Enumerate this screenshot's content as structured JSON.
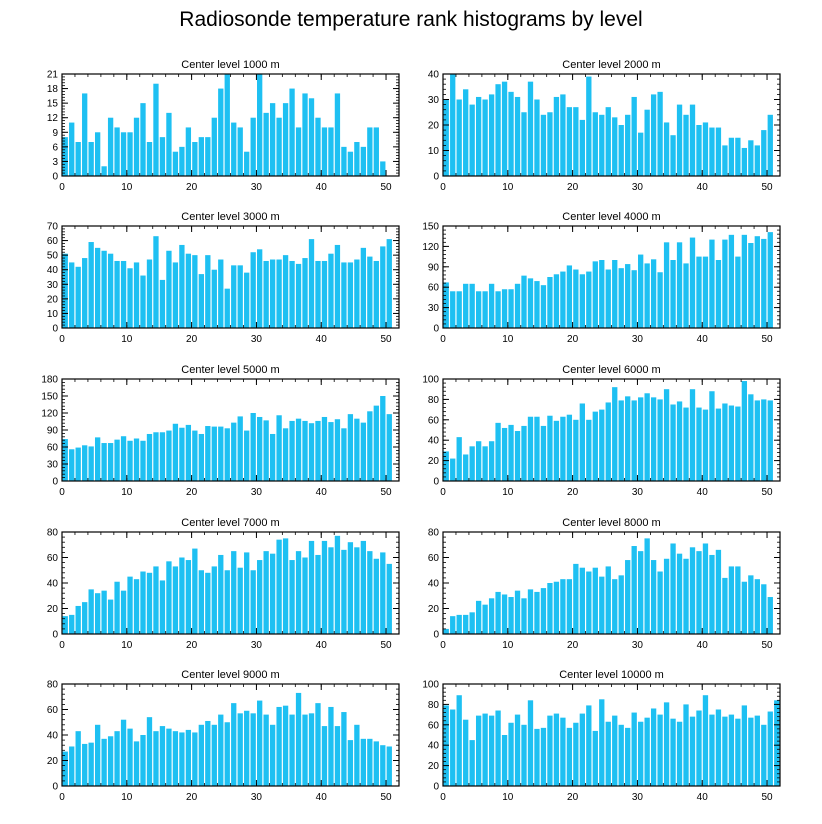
{
  "figure": {
    "title": "Radiosonde temperature rank histograms by level"
  },
  "colors": {
    "bar": "#1ec0f2",
    "axis": "#000000",
    "background": "#ffffff"
  },
  "chart_data": [
    {
      "type": "bar",
      "title": "Center level 1000 m",
      "xlabel": "",
      "ylabel": "",
      "xlim": [
        0,
        52
      ],
      "ylim": [
        0,
        21
      ],
      "xticks": [
        0,
        10,
        20,
        30,
        40,
        50
      ],
      "yticks": [
        0,
        3,
        6,
        9,
        12,
        15,
        18,
        21
      ],
      "values": [
        8,
        11,
        7,
        17,
        7,
        9,
        2,
        12,
        10,
        9,
        9,
        12,
        15,
        7,
        19,
        8,
        13,
        5,
        6,
        10,
        7,
        8,
        8,
        12,
        18,
        21,
        11,
        10,
        5,
        12,
        21,
        13,
        15,
        12,
        15,
        18,
        10,
        17,
        16,
        12,
        10,
        10,
        17,
        6,
        5,
        7,
        6,
        10,
        10,
        3
      ]
    },
    {
      "type": "bar",
      "title": "Center level 2000 m",
      "xlabel": "",
      "ylabel": "",
      "xlim": [
        0,
        52
      ],
      "ylim": [
        0,
        40
      ],
      "xticks": [
        0,
        10,
        20,
        30,
        40,
        50
      ],
      "yticks": [
        0,
        10,
        20,
        30,
        40
      ],
      "values": [
        30,
        40,
        30,
        34,
        28,
        31,
        30,
        32,
        36,
        37,
        33,
        31,
        25,
        37,
        30,
        24,
        25,
        31,
        32,
        27,
        27,
        22,
        39,
        25,
        24,
        27,
        23,
        20,
        24,
        31,
        17,
        26,
        32,
        33,
        21,
        16,
        28,
        24,
        28,
        20,
        21,
        19,
        19,
        12,
        15,
        15,
        11,
        14,
        12,
        18,
        24
      ]
    },
    {
      "type": "bar",
      "title": "Center level 3000 m",
      "xlabel": "",
      "ylabel": "",
      "xlim": [
        0,
        52
      ],
      "ylim": [
        0,
        70
      ],
      "xticks": [
        0,
        10,
        20,
        30,
        40,
        50
      ],
      "yticks": [
        0,
        10,
        20,
        30,
        40,
        50,
        60,
        70
      ],
      "values": [
        51,
        45,
        42,
        48,
        59,
        55,
        53,
        51,
        46,
        46,
        41,
        45,
        36,
        47,
        63,
        33,
        53,
        45,
        57,
        51,
        50,
        37,
        50,
        40,
        47,
        27,
        43,
        43,
        38,
        52,
        54,
        46,
        47,
        47,
        50,
        46,
        44,
        48,
        61,
        46,
        46,
        51,
        57,
        45,
        45,
        47,
        55,
        49,
        46,
        56,
        61
      ]
    },
    {
      "type": "bar",
      "title": "Center level 4000 m",
      "xlabel": "",
      "ylabel": "",
      "xlim": [
        0,
        52
      ],
      "ylim": [
        0,
        150
      ],
      "xticks": [
        0,
        10,
        20,
        30,
        40,
        50
      ],
      "yticks": [
        0,
        30,
        60,
        90,
        120,
        150
      ],
      "values": [
        67,
        54,
        54,
        65,
        65,
        54,
        54,
        65,
        54,
        57,
        57,
        65,
        77,
        73,
        69,
        63,
        75,
        79,
        83,
        92,
        86,
        79,
        83,
        98,
        100,
        86,
        100,
        88,
        94,
        85,
        108,
        95,
        101,
        82,
        126,
        100,
        126,
        95,
        133,
        105,
        105,
        130,
        100,
        130,
        137,
        105,
        137,
        125,
        135,
        131,
        141
      ]
    },
    {
      "type": "bar",
      "title": "Center level 5000 m",
      "xlabel": "",
      "ylabel": "",
      "xlim": [
        0,
        52
      ],
      "ylim": [
        0,
        180
      ],
      "xticks": [
        0,
        10,
        20,
        30,
        40,
        50
      ],
      "yticks": [
        0,
        30,
        60,
        90,
        120,
        150,
        180
      ],
      "values": [
        74,
        56,
        59,
        63,
        61,
        77,
        67,
        67,
        73,
        79,
        71,
        75,
        71,
        83,
        86,
        86,
        89,
        101,
        94,
        99,
        89,
        83,
        97,
        96,
        96,
        93,
        103,
        114,
        89,
        120,
        113,
        107,
        83,
        116,
        93,
        106,
        110,
        106,
        102,
        106,
        113,
        104,
        109,
        93,
        118,
        110,
        103,
        123,
        133,
        150,
        118
      ]
    },
    {
      "type": "bar",
      "title": "Center level 6000 m",
      "xlabel": "",
      "ylabel": "",
      "xlim": [
        0,
        52
      ],
      "ylim": [
        0,
        100
      ],
      "xticks": [
        0,
        10,
        20,
        30,
        40,
        50
      ],
      "yticks": [
        0,
        20,
        40,
        60,
        80,
        100
      ],
      "values": [
        29,
        22,
        43,
        26,
        34,
        39,
        34,
        39,
        57,
        52,
        55,
        49,
        54,
        63,
        63,
        54,
        64,
        59,
        63,
        65,
        60,
        76,
        60,
        68,
        70,
        77,
        92,
        79,
        83,
        79,
        82,
        86,
        82,
        80,
        90,
        75,
        78,
        72,
        90,
        72,
        70,
        88,
        71,
        76,
        74,
        73,
        98,
        85,
        79,
        80,
        79
      ]
    },
    {
      "type": "bar",
      "title": "Center level 7000 m",
      "xlabel": "",
      "ylabel": "",
      "xlim": [
        0,
        52
      ],
      "ylim": [
        0,
        80
      ],
      "xticks": [
        0,
        10,
        20,
        30,
        40,
        50
      ],
      "yticks": [
        0,
        20,
        40,
        60,
        80
      ],
      "values": [
        14,
        15,
        22,
        25,
        35,
        32,
        34,
        27,
        41,
        34,
        45,
        43,
        49,
        48,
        53,
        42,
        57,
        53,
        60,
        58,
        67,
        50,
        48,
        53,
        62,
        50,
        65,
        52,
        64,
        50,
        58,
        65,
        63,
        74,
        75,
        58,
        65,
        60,
        73,
        62,
        73,
        68,
        77,
        66,
        72,
        68,
        73,
        65,
        59,
        64,
        55
      ]
    },
    {
      "type": "bar",
      "title": "Center level 8000 m",
      "xlabel": "",
      "ylabel": "",
      "xlim": [
        0,
        52
      ],
      "ylim": [
        0,
        80
      ],
      "xticks": [
        0,
        10,
        20,
        30,
        40,
        50
      ],
      "yticks": [
        0,
        20,
        40,
        60,
        80
      ],
      "values": [
        4,
        14,
        15,
        15,
        17,
        26,
        23,
        28,
        33,
        31,
        29,
        34,
        28,
        35,
        33,
        36,
        40,
        41,
        43,
        43,
        55,
        52,
        49,
        52,
        45,
        53,
        43,
        46,
        58,
        69,
        65,
        75,
        58,
        49,
        59,
        71,
        63,
        59,
        68,
        65,
        71,
        62,
        66,
        44,
        53,
        53,
        41,
        46,
        43,
        39,
        29
      ]
    },
    {
      "type": "bar",
      "title": "Center level 9000 m",
      "xlabel": "",
      "ylabel": "",
      "xlim": [
        0,
        52
      ],
      "ylim": [
        0,
        80
      ],
      "xticks": [
        0,
        10,
        20,
        30,
        40,
        50
      ],
      "yticks": [
        0,
        20,
        40,
        60,
        80
      ],
      "values": [
        27,
        31,
        43,
        33,
        34,
        48,
        37,
        39,
        43,
        52,
        45,
        35,
        40,
        54,
        43,
        47,
        45,
        43,
        42,
        44,
        42,
        48,
        51,
        48,
        56,
        50,
        65,
        57,
        59,
        57,
        67,
        56,
        48,
        62,
        63,
        56,
        73,
        56,
        57,
        65,
        47,
        62,
        47,
        58,
        36,
        48,
        37,
        37,
        35,
        32,
        31
      ]
    },
    {
      "type": "bar",
      "title": "Center level 10000 m",
      "xlabel": "",
      "ylabel": "",
      "xlim": [
        0,
        52
      ],
      "ylim": [
        0,
        100
      ],
      "xticks": [
        0,
        10,
        20,
        30,
        40,
        50
      ],
      "yticks": [
        0,
        20,
        40,
        60,
        80,
        100
      ],
      "values": [
        79,
        75,
        89,
        65,
        45,
        69,
        71,
        69,
        74,
        50,
        62,
        70,
        60,
        84,
        56,
        57,
        69,
        71,
        67,
        57,
        62,
        71,
        79,
        54,
        85,
        63,
        69,
        60,
        57,
        72,
        63,
        67,
        76,
        70,
        82,
        66,
        63,
        80,
        68,
        74,
        89,
        70,
        75,
        68,
        70,
        66,
        79,
        67,
        69,
        60,
        73,
        84
      ]
    }
  ]
}
